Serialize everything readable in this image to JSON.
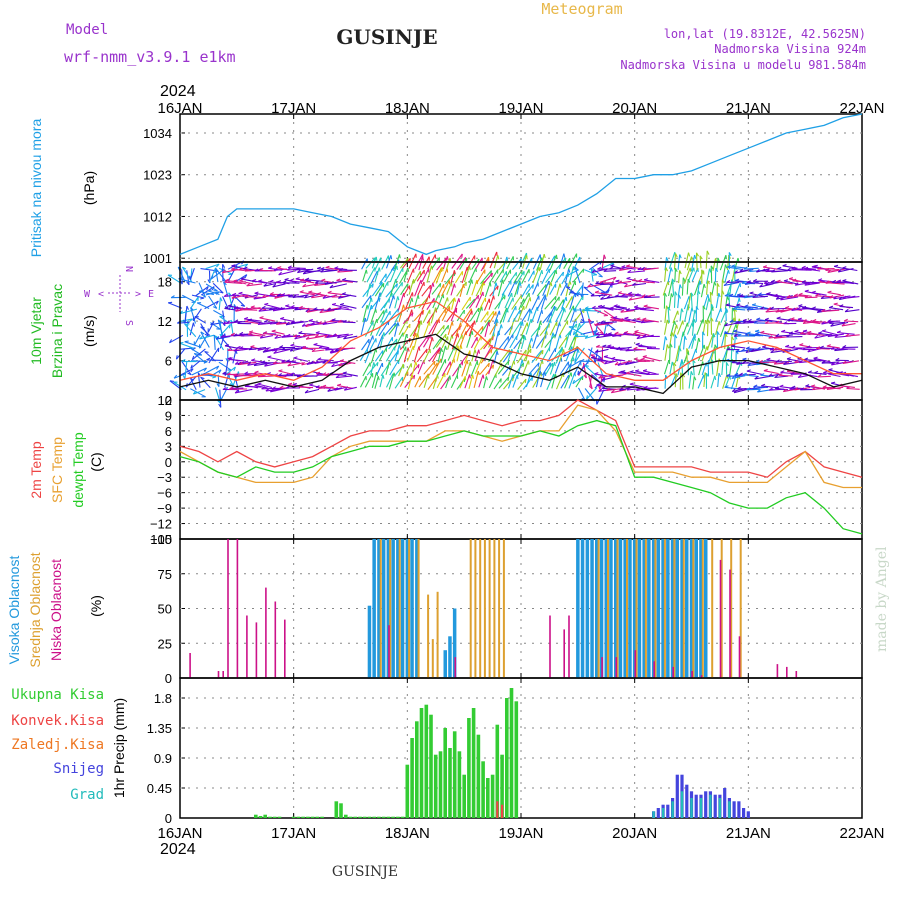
{
  "header": {
    "model_label": "Model",
    "model_name": "wrf-nmm_v3.9.1 e1km",
    "station": "GUSINJE",
    "product": "Meteogram",
    "coords": "lon,lat (19.8312E, 42.5625N)",
    "altitude": "Nadmorska Visina 924m",
    "model_altitude": "Nadmorska Visina u modelu 981.584m"
  },
  "time_axis": {
    "year": "2024",
    "ticks": [
      "16JAN",
      "17JAN",
      "18JAN",
      "19JAN",
      "20JAN",
      "21JAN",
      "22JAN"
    ]
  },
  "footer": {
    "station": "GUSINJE",
    "credit": "made by Angel"
  },
  "colors": {
    "pressure": "#1fa0e6",
    "temp2m": "#ee4444",
    "sfc_temp": "#e8a030",
    "dewpt": "#22cc22",
    "wind_label": "#22bb22",
    "high_cloud": "#2299dd",
    "mid_cloud": "#dda030",
    "low_cloud": "#cc1188",
    "precip_total": "#33cc33",
    "precip_conv": "#ee4444",
    "precip_frozen": "#ee7722",
    "snow": "#4444dd",
    "graupel": "#22bbbb",
    "header_purple": "#9933cc",
    "header_orange": "#e8b84a"
  },
  "panels": {
    "pressure": {
      "labels": [
        "Pritisak na nivou mora"
      ],
      "unit": "(hPa)",
      "yticks": [
        "1034",
        "1023",
        "1012",
        "1001"
      ]
    },
    "wind": {
      "labels": [
        "10m Vjetar",
        "Brzina i Pravac"
      ],
      "unit": "(m/s)",
      "yticks": [
        "18",
        "12",
        "6",
        "0"
      ],
      "compass": {
        "w": "W",
        "e": "E",
        "n": "N",
        "s": "S",
        "left_arrow": "<",
        "right_arrow": ">",
        "up": "^",
        "down": "v"
      }
    },
    "temp": {
      "labels": [
        "2m Temp",
        "SFC Temp",
        "dewpt Temp"
      ],
      "unit": "(C)",
      "yticks": [
        "12",
        "9",
        "6",
        "3",
        "0",
        "−3",
        "−6",
        "−9",
        "−12",
        "−15"
      ]
    },
    "cloud": {
      "labels": [
        "Visoka Oblacnost",
        "Srednja Oblacnost",
        "Niska Oblacnost"
      ],
      "unit": "(%)",
      "yticks": [
        "100",
        "75",
        "50",
        "25",
        "0"
      ]
    },
    "precip": {
      "legend": [
        "Ukupna Kisa",
        "Konvek.Kisa",
        "Zaledj.Kisa",
        "Snijeg",
        "Grad"
      ],
      "unit": "1hr Precip (mm)",
      "yticks": [
        "1.8",
        "1.35",
        "0.9",
        "0.45",
        "0"
      ]
    }
  },
  "chart_data": [
    {
      "type": "line",
      "name": "pressure",
      "ylabel": "Pritisak na nivou mora (hPa)",
      "x_unit": "hours since 16JAN 00",
      "ylim": [
        1000,
        1039
      ],
      "x": [
        0,
        4,
        8,
        10,
        12,
        14,
        16,
        20,
        24,
        28,
        32,
        36,
        40,
        44,
        46,
        48,
        50,
        52,
        54,
        58,
        60,
        64,
        68,
        72,
        76,
        80,
        84,
        88,
        92,
        96,
        100,
        104,
        108,
        112,
        116,
        120,
        124,
        128,
        132,
        136,
        140,
        144
      ],
      "y": [
        1002,
        1004,
        1006,
        1012,
        1014,
        1014,
        1014,
        1014,
        1014,
        1013,
        1012,
        1010,
        1009,
        1008,
        1006,
        1004,
        1003,
        1002,
        1003,
        1004,
        1005,
        1006,
        1008,
        1010,
        1012,
        1013,
        1015,
        1018,
        1022,
        1022,
        1023,
        1023,
        1024,
        1026,
        1028,
        1030,
        1032,
        1034,
        1035,
        1036,
        1038,
        1039
      ]
    },
    {
      "type": "scatter",
      "name": "wind",
      "ylabel": "10m Vjetar Brzina i Pravac (m/s)",
      "x_unit": "hours since 16JAN 00",
      "ylim": [
        0,
        21
      ],
      "speed_x": [
        0,
        6,
        12,
        18,
        24,
        30,
        36,
        42,
        48,
        54,
        60,
        66,
        72,
        78,
        84,
        90,
        96,
        102,
        108,
        114,
        120,
        126,
        132,
        138,
        144
      ],
      "speed": [
        2,
        3,
        2,
        3,
        2,
        3,
        6,
        8,
        9,
        10,
        7,
        6,
        4,
        3,
        5,
        2,
        2,
        1,
        5,
        6,
        6,
        5,
        4,
        2,
        3
      ],
      "gust": [
        3,
        4,
        3,
        4,
        3,
        5,
        9,
        11,
        14,
        15,
        12,
        8,
        7,
        6,
        8,
        4,
        3,
        3,
        6,
        8,
        9,
        8,
        6,
        4,
        4
      ]
    },
    {
      "type": "line",
      "name": "temperature",
      "ylabel": "Temp (C)",
      "ylim": [
        -15,
        12
      ],
      "x_unit": "hours since 16JAN 00",
      "x": [
        0,
        4,
        8,
        12,
        16,
        20,
        24,
        28,
        32,
        36,
        40,
        44,
        48,
        52,
        56,
        60,
        64,
        68,
        72,
        76,
        80,
        84,
        88,
        92,
        96,
        100,
        104,
        108,
        112,
        116,
        120,
        124,
        128,
        132,
        136,
        140,
        144
      ],
      "series": [
        {
          "name": "2m Temp",
          "values": [
            3,
            2,
            0,
            2,
            0,
            -1,
            0,
            1,
            3,
            5,
            6,
            6,
            7,
            7,
            8,
            9,
            8,
            7,
            8,
            8,
            9,
            12,
            10,
            8,
            -1,
            -1,
            -1,
            -1,
            -2,
            -2,
            -2,
            -3,
            0,
            2,
            -1,
            -2,
            -3
          ]
        },
        {
          "name": "SFC Temp",
          "values": [
            2,
            0,
            -2,
            -3,
            -4,
            -4,
            -4,
            -3,
            1,
            3,
            4,
            4,
            4,
            4,
            6,
            6,
            5,
            4,
            5,
            6,
            6,
            11,
            10,
            6,
            -2,
            -2,
            -2,
            -3,
            -3,
            -4,
            -4,
            -4,
            -1,
            2,
            -4,
            -5,
            -5
          ]
        },
        {
          "name": "dewpt Temp",
          "values": [
            1,
            0,
            -2,
            -3,
            -1,
            -2,
            -2,
            -1,
            1,
            2,
            3,
            3,
            4,
            4,
            5,
            6,
            5,
            5,
            5,
            6,
            5,
            7,
            8,
            7,
            -3,
            -3,
            -4,
            -5,
            -6,
            -8,
            -9,
            -9,
            -7,
            -6,
            -9,
            -13,
            -14
          ]
        }
      ]
    },
    {
      "type": "bar",
      "name": "cloud_cover",
      "ylabel": "Oblacnost (%)",
      "ylim": [
        0,
        100
      ],
      "x_unit": "hours since 16JAN 00",
      "series": [
        {
          "name": "Visoka Oblacnost",
          "x": [
            40,
            41,
            42,
            43,
            44,
            45,
            46,
            47,
            48,
            49,
            50,
            56,
            57,
            58,
            84,
            85,
            86,
            87,
            88,
            89,
            90,
            91,
            92,
            93,
            94,
            95,
            96,
            97,
            98,
            99,
            100,
            101,
            102,
            103,
            104,
            105,
            106,
            107,
            108,
            109,
            110,
            111
          ],
          "values": [
            52,
            100,
            100,
            100,
            100,
            100,
            100,
            100,
            100,
            100,
            100,
            20,
            30,
            50,
            100,
            100,
            100,
            100,
            100,
            100,
            100,
            100,
            100,
            100,
            100,
            100,
            100,
            100,
            100,
            100,
            100,
            100,
            100,
            100,
            100,
            100,
            100,
            100,
            100,
            100,
            100,
            100
          ]
        },
        {
          "name": "Srednja Oblacnost",
          "x": [
            42,
            44,
            46,
            48,
            50,
            52,
            53,
            54,
            61,
            62,
            63,
            64,
            65,
            66,
            67,
            68,
            88,
            90,
            92,
            94,
            96,
            98,
            100,
            102,
            104,
            106,
            108,
            110,
            112,
            114,
            116,
            118
          ],
          "values": [
            100,
            100,
            100,
            100,
            100,
            60,
            28,
            62,
            100,
            100,
            100,
            100,
            100,
            100,
            100,
            100,
            100,
            100,
            100,
            100,
            100,
            100,
            100,
            100,
            100,
            100,
            100,
            100,
            100,
            100,
            100,
            100
          ]
        },
        {
          "name": "Niska Oblacnost",
          "x": [
            2,
            8,
            9,
            10,
            12,
            14,
            16,
            18,
            20,
            22,
            44,
            58,
            78,
            81,
            82,
            89,
            92,
            96,
            100,
            104,
            108,
            110,
            114,
            116,
            118,
            126,
            128,
            130
          ],
          "values": [
            18,
            5,
            5,
            100,
            100,
            45,
            40,
            65,
            55,
            42,
            38,
            15,
            45,
            35,
            45,
            15,
            15,
            20,
            12,
            8,
            5,
            2,
            85,
            78,
            30,
            10,
            8,
            5
          ]
        }
      ]
    },
    {
      "type": "bar",
      "name": "precipitation",
      "ylabel": "1hr Precip (mm)",
      "ylim": [
        0,
        2.1
      ],
      "x_unit": "hours since 16JAN 00",
      "series": [
        {
          "name": "Ukupna Kisa",
          "x": [
            16,
            17,
            18,
            19,
            20,
            21,
            24,
            25,
            26,
            27,
            28,
            29,
            30,
            33,
            34,
            35,
            36,
            37,
            38,
            39,
            40,
            41,
            42,
            43,
            44,
            45,
            46,
            47,
            48,
            49,
            50,
            51,
            52,
            53,
            54,
            55,
            56,
            57,
            58,
            59,
            60,
            61,
            62,
            63,
            64,
            65,
            66,
            67,
            68,
            69,
            70,
            71
          ],
          "values": [
            0.05,
            0.03,
            0.05,
            0.02,
            0.02,
            0.02,
            0.02,
            0.02,
            0.02,
            0.02,
            0.02,
            0.02,
            0.02,
            0.25,
            0.22,
            0.05,
            0.02,
            0.02,
            0.02,
            0.02,
            0.02,
            0.02,
            0.02,
            0.02,
            0.02,
            0.02,
            0.02,
            0.02,
            0.8,
            1.2,
            1.45,
            1.65,
            1.7,
            1.55,
            0.95,
            1.0,
            1.35,
            1.05,
            1.3,
            1.0,
            0.65,
            1.5,
            1.65,
            1.25,
            0.85,
            0.6,
            0.65,
            1.4,
            0.95,
            1.8,
            1.95,
            1.75
          ]
        },
        {
          "name": "Konvek.Kisa",
          "x": [
            67,
            68
          ],
          "values": [
            0.25,
            0.2
          ]
        },
        {
          "name": "Snijeg",
          "x": [
            100,
            101,
            102,
            103,
            104,
            105,
            106,
            107,
            108,
            109,
            110,
            111,
            112,
            113,
            114,
            115,
            116,
            117,
            118,
            119,
            120
          ],
          "values": [
            0.1,
            0.15,
            0.2,
            0.2,
            0.3,
            0.65,
            0.65,
            0.5,
            0.4,
            0.35,
            0.35,
            0.4,
            0.4,
            0.35,
            0.35,
            0.45,
            0.3,
            0.25,
            0.25,
            0.15,
            0.1
          ]
        },
        {
          "name": "Grad",
          "x": [
            100,
            102,
            104,
            106,
            108,
            110,
            112,
            114,
            116
          ],
          "values": [
            0.1,
            0.15,
            0.25,
            0.4,
            0.3,
            0.3,
            0.35,
            0.3,
            0.25
          ]
        }
      ]
    }
  ]
}
